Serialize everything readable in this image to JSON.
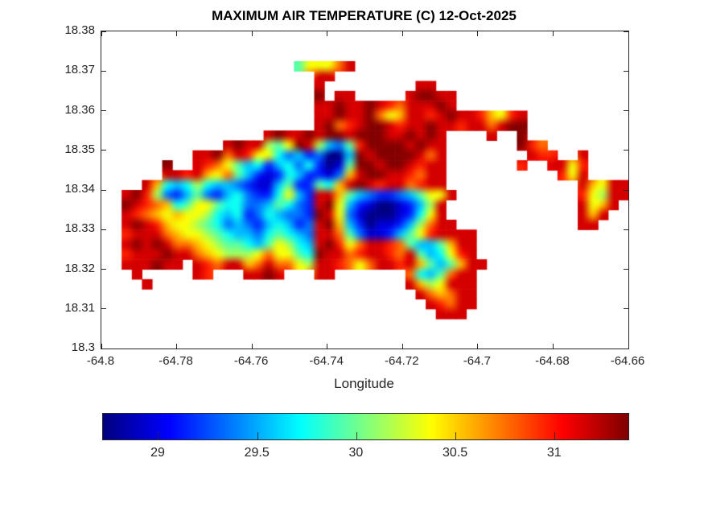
{
  "title": "MAXIMUM AIR TEMPERATURE (C) 12-Oct-2025",
  "xlabel": "Longitude",
  "date": "12-Oct-2025",
  "units": "C",
  "colors": {
    "background": "#ffffff",
    "axis": "#262626",
    "title_text": "#000000",
    "colormap": "jet"
  },
  "chart_data": {
    "type": "heatmap",
    "title": "MAXIMUM AIR TEMPERATURE (C) 12-Oct-2025",
    "xlabel": "Longitude",
    "ylabel": "",
    "xlim": [
      -64.8,
      -64.66
    ],
    "ylim": [
      18.3,
      18.38
    ],
    "grid_lines": false,
    "x_ticks": {
      "values": [
        -64.8,
        -64.78,
        -64.76,
        -64.74,
        -64.72,
        -64.7,
        -64.68,
        -64.66
      ],
      "labels": [
        "-64.8",
        "-64.78",
        "-64.76",
        "-64.74",
        "-64.72",
        "-64.7",
        "-64.68",
        "-64.66"
      ]
    },
    "y_ticks": {
      "values": [
        18.38,
        18.37,
        18.36,
        18.35,
        18.34,
        18.33,
        18.32,
        18.31,
        18.3
      ],
      "labels": [
        "18.38",
        "18.37",
        "18.36",
        "18.35",
        "18.34",
        "18.33",
        "18.32",
        "18.31",
        "18.3"
      ]
    },
    "colorbar": {
      "orientation": "horizontal",
      "colormap": "jet",
      "vmin": 28.72,
      "vmax": 31.37,
      "tick_values": [
        29,
        29.5,
        30,
        30.5,
        31
      ],
      "tick_labels": [
        "29",
        "29.5",
        "30",
        "30.5",
        "31"
      ]
    },
    "grid": {
      "cols": 52,
      "rows": 32,
      "sea_char": ".",
      "value_scale": {
        "a": 28.75,
        "b": 28.95,
        "c": 29.15,
        "d": 29.35,
        "e": 29.55,
        "f": 29.75,
        "g": 29.95,
        "h": 30.15,
        "i": 30.35,
        "j": 30.55,
        "k": 30.75,
        "l": 30.95,
        "m": 31.15,
        "n": 31.35
      },
      "rows_data": [
        "....................................................",
        "....................................................",
        "....................................................",
        "...................giiikm...........................",
        ".....................mm.............................",
        ".....................m.........mm...................",
        ".....................n.mm.....mnnmm.................",
        ".....................mmnmmnmlkmmmnm.................",
        ".....................mmnmmnkijmmlmnmmljilm..........",
        ".....................mnklmnnmlmmnmmlmmkmnn..........",
        "................mnmmnmnnmnnnmmnmnm....m..n..........",
        "............mnmmhginmhedglnnnnmnmm.......nlk........",
        ".........mmnkmliifdecdaaenmnnnnmkm........mll..m....",
        "......n..mlkigefcefdfcabgnnmnnmlmm.......l..mmil....",
        "......mmlmjikgecbcfeccbdjmnnmmlkmm...........lim....",
        "....mjfefhfeedcbbegccgfjmnmlmmklmm.............mjimm",
        "..mnlhdcegdcefdccfiecmmjgedccdegiim............lihmm",
        "..nmlkjfgiigffddegfdcmniecbaabcehm.............mijm.",
        "..mlkjijiihfefcdfeddcnmidbaaabcfim.............mjm..",
        "..mnmljiihgfdedcefecdmnjecabbcehkmm............mm...",
        "..lmmmkjiihgfeedfgfedmmkgdbbcegilmmmm...............",
        "..mnmnmkkjihggfegihfemnlikmmlkgeegjmm...............",
        "..lmmmnmmkjihhhikiigfnmmklmmlkmgefilm...............",
        "..mmmnmm.mlkmmjkmkkihmmlkikmmlmjgegjmm..............",
        "...m.....ml...mmnm...mm.......kfegkmm...............",
        "....m.........................mjhimmm...............",
        "...............................mkjkmm...............",
        "................................mlkmm...............",
        ".................................mmm................",
        "....................................................",
        "....................................................",
        "...................................................."
      ]
    }
  }
}
